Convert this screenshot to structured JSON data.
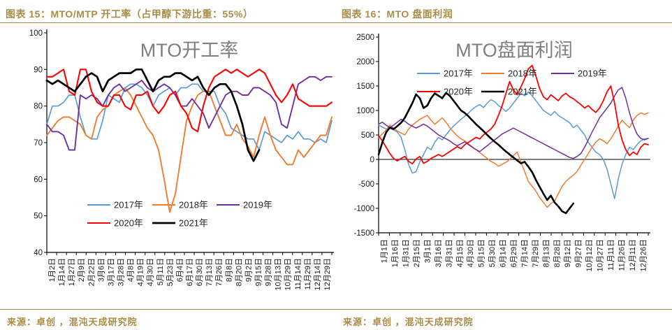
{
  "colors": {
    "accent": "#a98c46",
    "chart_title_gray": "#7f7f7f",
    "axis_text": "#1a1a1a",
    "legend_text": "#262626",
    "series_2017": "#5B9BD5",
    "series_2018": "#ED7D31",
    "series_2019": "#7030A0",
    "series_2020": "#FF0000",
    "series_2021": "#000000"
  },
  "chart_data": [
    {
      "type": "line",
      "panel_header": "图表 15：MTO/MTP 开工率（占甲醇下游比重：55%）",
      "source": "来源：卓创 ，混沌天成研究院",
      "title": "MTO开工率",
      "ylim": [
        40,
        100
      ],
      "y_ticks": [
        100,
        90,
        80,
        70,
        60,
        50,
        40
      ],
      "grid": "off",
      "full_series_points": 52,
      "x_tick_labels": [
        "1月2日",
        "1月14日",
        "1月27日",
        "2月9日",
        "2月22日",
        "3月6日",
        "3月17日",
        "3月28日",
        "4月8日",
        "4月19日",
        "4月30日",
        "5月11日",
        "5月23日",
        "6月4日",
        "6月17日",
        "6月30日",
        "7月13日",
        "7月26日",
        "8月8日",
        "8月20日",
        "9月2日",
        "9月15日",
        "9月28日",
        "10月13日",
        "10月29日",
        "11月14日",
        "11月29日",
        "12月14日",
        "12月29日"
      ],
      "legend": {
        "position": "inside-bottom-center",
        "rows": [
          [
            0,
            1,
            2
          ],
          [
            3,
            4
          ]
        ]
      },
      "series": [
        {
          "name": "2017年",
          "color": "#5B9BD5",
          "width": 1.7,
          "values": [
            75,
            80,
            80,
            81,
            83,
            83,
            77,
            72,
            71,
            71,
            76,
            83,
            82,
            81,
            85,
            86,
            86,
            85,
            83,
            80,
            83,
            84,
            85,
            83,
            85,
            85,
            86,
            86,
            84,
            84,
            84,
            80,
            78,
            74,
            73,
            72,
            71,
            71,
            68,
            73,
            72,
            71,
            70,
            72,
            71,
            73,
            71,
            71,
            70,
            71,
            70,
            76
          ]
        },
        {
          "name": "2018年",
          "color": "#ED7D31",
          "width": 1.9,
          "values": [
            72,
            74,
            76,
            77,
            77,
            76,
            75,
            72,
            71,
            77,
            79,
            80,
            83,
            84,
            85,
            83,
            80,
            77,
            74,
            72,
            68,
            60,
            51,
            56,
            66,
            76,
            80,
            83,
            84,
            84,
            80,
            76,
            72,
            72,
            75,
            71,
            69,
            66,
            72,
            77,
            72,
            68,
            66,
            64,
            64,
            68,
            66,
            68,
            70,
            72,
            72,
            77
          ]
        },
        {
          "name": "2019年",
          "color": "#7030A0",
          "width": 1.9,
          "values": [
            75,
            73,
            73,
            72,
            68,
            68,
            83,
            82,
            83,
            82,
            80,
            83,
            85,
            86,
            84,
            85,
            86,
            87,
            85,
            84,
            85,
            86,
            85,
            83,
            80,
            80,
            82,
            80,
            78,
            74,
            77,
            80,
            83,
            84,
            84,
            83,
            83,
            85,
            85,
            84,
            83,
            81,
            75,
            74,
            80,
            86,
            87,
            88,
            88,
            87,
            88,
            88
          ]
        },
        {
          "name": "2020年",
          "color": "#FF0000",
          "width": 2.1,
          "values": [
            88,
            88,
            89,
            90,
            84,
            83,
            90,
            90,
            84,
            81,
            80,
            80,
            83,
            83,
            80,
            79,
            83,
            83,
            84,
            80,
            78,
            80,
            83,
            84,
            80,
            78,
            74,
            73,
            80,
            85,
            88,
            89,
            90,
            89,
            90,
            89,
            88,
            89,
            90,
            89,
            86,
            83,
            81,
            83,
            86,
            82,
            81,
            80,
            80,
            80,
            80,
            81
          ]
        },
        {
          "name": "2021年",
          "color": "#000000",
          "width": 2.7,
          "values": [
            87,
            86,
            87,
            86,
            85,
            84,
            86,
            88,
            89,
            88,
            84,
            87,
            88,
            89,
            89,
            89,
            90,
            90,
            87,
            84,
            87,
            88,
            88,
            89,
            89,
            88,
            87,
            88,
            85,
            83,
            85,
            86,
            86,
            84,
            80,
            75,
            68,
            65,
            68
          ]
        }
      ]
    },
    {
      "type": "line",
      "panel_header": "图表 16：MTO 盘面利润",
      "source": "来源：卓创 ，混沌天成研究院",
      "title": "MTO盘面利润",
      "ylim": [
        -1500,
        2500
      ],
      "y_ticks": [
        2500,
        2000,
        1500,
        1000,
        500,
        0,
        -500,
        -1000,
        -1500
      ],
      "grid": "off",
      "zero_line": true,
      "full_series_points": 73,
      "x_tick_labels": [
        "1月1日",
        "1月16日",
        "1月31日",
        "2月15日",
        "3月1日",
        "3月16日",
        "3月31日",
        "4月15日",
        "4月30日",
        "5月15日",
        "5月30日",
        "6月14日",
        "6月29日",
        "7月14日",
        "7月29日",
        "8月13日",
        "8月28日",
        "9月12日",
        "9月27日",
        "10月12日",
        "10月27日",
        "11月11日",
        "11月26日",
        "12月11日",
        "12月26日"
      ],
      "legend": {
        "position": "inside-top-center",
        "rows": [
          [
            0,
            1,
            2
          ],
          [
            3,
            4
          ]
        ]
      },
      "series": [
        {
          "name": "2017年",
          "color": "#5B9BD5",
          "width": 1.5,
          "values": [
            700,
            660,
            620,
            640,
            600,
            560,
            450,
            200,
            -100,
            -280,
            -250,
            -50,
            100,
            250,
            200,
            350,
            450,
            400,
            500,
            600,
            680,
            750,
            820,
            880,
            950,
            1020,
            1080,
            1120,
            1060,
            1150,
            1220,
            1180,
            1100,
            1050,
            980,
            1050,
            1150,
            1250,
            1350,
            1300,
            1380,
            1300,
            1200,
            1100,
            1000,
            950,
            900,
            980,
            900,
            850,
            800,
            750,
            650,
            700,
            600,
            500,
            350,
            250,
            150,
            100,
            0,
            -200,
            -500,
            -800,
            -400,
            -100,
            100,
            250,
            200,
            300,
            380,
            420,
            430
          ]
        },
        {
          "name": "2018年",
          "color": "#ED7D31",
          "width": 1.5,
          "values": [
            450,
            520,
            600,
            700,
            640,
            580,
            540,
            500,
            620,
            700,
            760,
            820,
            860,
            900,
            800,
            720,
            780,
            850,
            760,
            650,
            560,
            480,
            420,
            380,
            320,
            260,
            200,
            140,
            80,
            20,
            -40,
            -80,
            -140,
            -100,
            -60,
            0,
            80,
            150,
            -50,
            -250,
            -450,
            -550,
            -650,
            -780,
            -880,
            -980,
            -900,
            -850,
            -700,
            -550,
            -450,
            -380,
            -320,
            -250,
            -120,
            0,
            120,
            250,
            350,
            420,
            380,
            320,
            420,
            550,
            680,
            800,
            720,
            650,
            800,
            900,
            950,
            920,
            950
          ]
        },
        {
          "name": "2019年",
          "color": "#7030A0",
          "width": 1.5,
          "values": [
            720,
            760,
            700,
            650,
            700,
            760,
            820,
            780,
            720,
            680,
            640,
            680,
            720,
            680,
            620,
            560,
            500,
            460,
            420,
            380,
            320,
            280,
            320,
            360,
            300,
            250,
            200,
            160,
            220,
            280,
            340,
            400,
            460,
            520,
            560,
            600,
            640,
            600,
            560,
            520,
            480,
            440,
            400,
            360,
            320,
            280,
            240,
            200,
            160,
            120,
            80,
            40,
            20,
            60,
            120,
            250,
            400,
            560,
            700,
            850,
            950,
            1050,
            1150,
            1300,
            1420,
            1470,
            1250,
            950,
            700,
            520,
            430,
            400,
            430
          ]
        },
        {
          "name": "2020年",
          "color": "#FF0000",
          "width": 1.8,
          "values": [
            480,
            380,
            250,
            120,
            20,
            -30,
            20,
            60,
            -40,
            -90,
            10,
            60,
            -80,
            -40,
            20,
            60,
            100,
            60,
            110,
            160,
            210,
            260,
            220,
            300,
            350,
            400,
            450,
            420,
            500,
            560,
            620,
            720,
            900,
            1100,
            1350,
            1590,
            1420,
            1320,
            1480,
            1650,
            1850,
            1920,
            1700,
            1450,
            1280,
            1220,
            1320,
            1260,
            1200,
            1300,
            1350,
            1280,
            1240,
            1180,
            1120,
            1050,
            1100,
            1020,
            960,
            1050,
            1200,
            1380,
            1500,
            1150,
            700,
            400,
            200,
            80,
            150,
            100,
            250,
            320,
            300
          ]
        },
        {
          "name": "2021年",
          "color": "#000000",
          "width": 2.6,
          "values": [
            100,
            350,
            550,
            650,
            620,
            680,
            750,
            850,
            1000,
            1150,
            1330,
            1250,
            1050,
            1100,
            1250,
            1350,
            1300,
            1250,
            1360,
            1300,
            1200,
            1100,
            1000,
            950,
            880,
            800,
            720,
            650,
            580,
            500,
            430,
            360,
            300,
            230,
            160,
            100,
            40,
            -20,
            -80,
            -50,
            -150,
            -260,
            -420,
            -560,
            -700,
            -830,
            -740,
            -880,
            -960,
            -1060,
            -1100,
            -1000,
            -900
          ]
        }
      ]
    }
  ]
}
